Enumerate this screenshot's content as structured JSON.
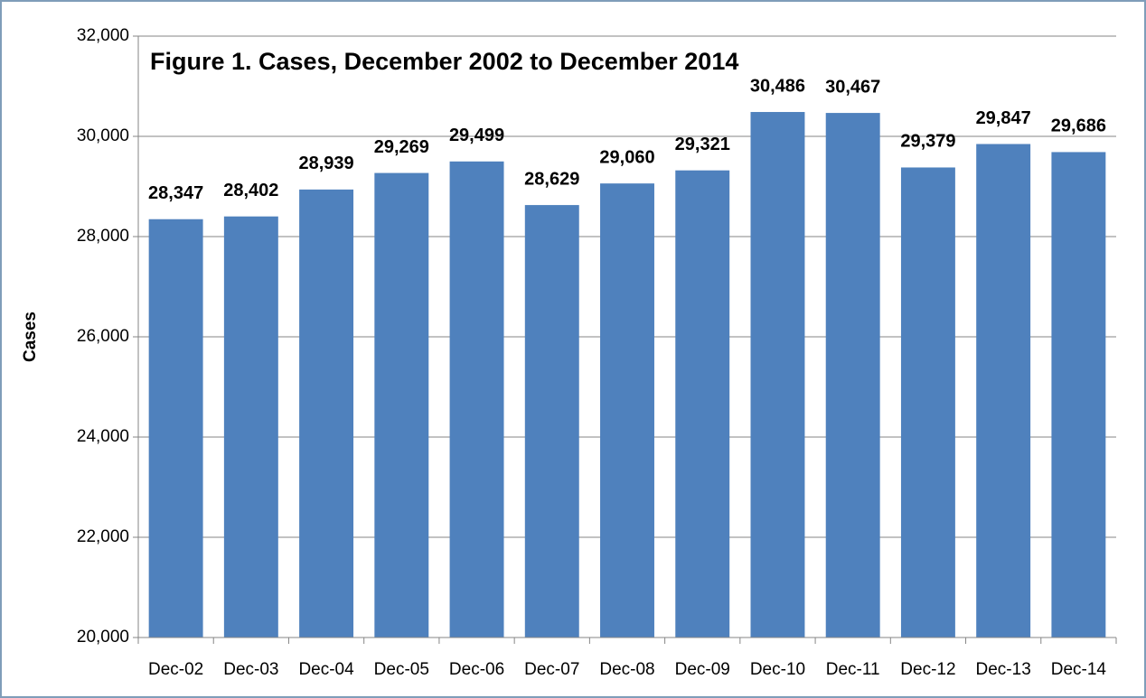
{
  "chart_data": {
    "type": "bar",
    "title": "Figure 1. Cases, December 2002 to December 2014",
    "y_label": "Cases",
    "categories": [
      "Dec-02",
      "Dec-03",
      "Dec-04",
      "Dec-05",
      "Dec-06",
      "Dec-07",
      "Dec-08",
      "Dec-09",
      "Dec-10",
      "Dec-11",
      "Dec-12",
      "Dec-13",
      "Dec-14"
    ],
    "values": [
      28347,
      28402,
      28939,
      29269,
      29499,
      28629,
      29060,
      29321,
      30486,
      30467,
      29379,
      29847,
      29686
    ],
    "value_labels": [
      "28,347",
      "28,402",
      "28,939",
      "29,269",
      "29,499",
      "28,629",
      "29,060",
      "29,321",
      "30,486",
      "30,467",
      "29,379",
      "29,847",
      "29,686"
    ],
    "color": "#4f81bd",
    "ylim": [
      20000,
      32000
    ],
    "yticks": [
      {
        "value": 20000,
        "label": "20,000"
      },
      {
        "value": 22000,
        "label": "22,000"
      },
      {
        "value": 24000,
        "label": "24,000"
      },
      {
        "value": 26000,
        "label": "26,000"
      },
      {
        "value": 28000,
        "label": "28,000"
      },
      {
        "value": 30000,
        "label": "30,000"
      },
      {
        "value": 32000,
        "label": "32,000"
      }
    ],
    "grid": true
  }
}
